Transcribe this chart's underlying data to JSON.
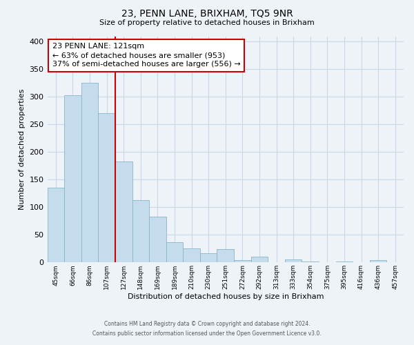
{
  "title": "23, PENN LANE, BRIXHAM, TQ5 9NR",
  "subtitle": "Size of property relative to detached houses in Brixham",
  "xlabel": "Distribution of detached houses by size in Brixham",
  "ylabel": "Number of detached properties",
  "bar_labels": [
    "45sqm",
    "66sqm",
    "86sqm",
    "107sqm",
    "127sqm",
    "148sqm",
    "169sqm",
    "189sqm",
    "210sqm",
    "230sqm",
    "251sqm",
    "272sqm",
    "292sqm",
    "313sqm",
    "333sqm",
    "354sqm",
    "375sqm",
    "395sqm",
    "416sqm",
    "436sqm",
    "457sqm"
  ],
  "bar_values": [
    135,
    303,
    325,
    270,
    183,
    113,
    83,
    37,
    26,
    17,
    24,
    4,
    10,
    0,
    5,
    1,
    0,
    2,
    0,
    4,
    0
  ],
  "bar_color": "#c5dced",
  "bar_edge_color": "#8ab4cc",
  "vline_x_index": 4,
  "vline_color": "#cc0000",
  "annotation_text": "23 PENN LANE: 121sqm\n← 63% of detached houses are smaller (953)\n37% of semi-detached houses are larger (556) →",
  "annotation_box_color": "white",
  "annotation_box_edge": "#cc0000",
  "ylim": [
    0,
    410
  ],
  "yticks": [
    0,
    50,
    100,
    150,
    200,
    250,
    300,
    350,
    400
  ],
  "footer_line1": "Contains HM Land Registry data © Crown copyright and database right 2024.",
  "footer_line2": "Contains public sector information licensed under the Open Government Licence v3.0.",
  "background_color": "#eef3f8",
  "grid_color": "#c8d8e8"
}
